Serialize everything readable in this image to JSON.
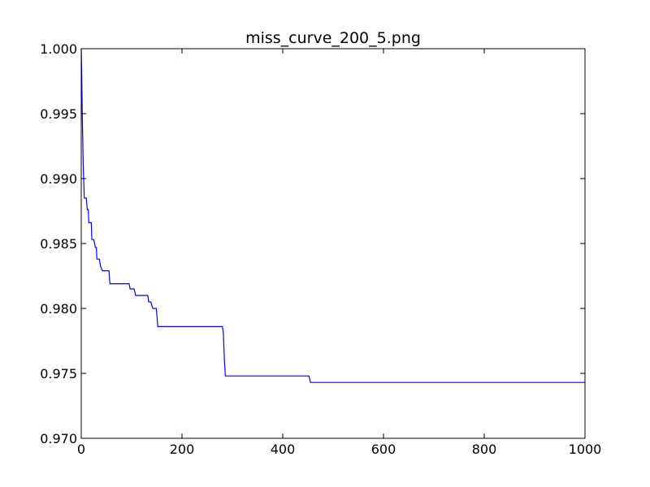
{
  "chart_data": {
    "type": "line",
    "title": "miss_curve_200_5.png",
    "xlabel": "",
    "ylabel": "",
    "xlim": [
      0,
      1000
    ],
    "ylim": [
      0.97,
      1.0
    ],
    "grid": false,
    "line_color": "#0000ff",
    "x_ticks": [
      0,
      200,
      400,
      600,
      800,
      1000
    ],
    "x_tick_labels": [
      "0",
      "200",
      "400",
      "600",
      "800",
      "1000"
    ],
    "y_ticks": [
      0.97,
      0.975,
      0.98,
      0.985,
      0.99,
      0.995,
      1.0
    ],
    "y_tick_labels": [
      "0.970",
      "0.975",
      "0.980",
      "0.985",
      "0.990",
      "0.995",
      "1.000"
    ],
    "series": [
      {
        "x": [
          0,
          1,
          2,
          4,
          6,
          8,
          10,
          12,
          13,
          14,
          15,
          16,
          18,
          20,
          21,
          22,
          24,
          25,
          28,
          30,
          31,
          34,
          36,
          38,
          42,
          44,
          48,
          55,
          57,
          60,
          95,
          97,
          105,
          108,
          132,
          134,
          138,
          142,
          147,
          149,
          152,
          155,
          280,
          282,
          284,
          286,
          288,
          452,
          455,
          1000
        ],
        "y": [
          1.0,
          0.998,
          0.995,
          0.991,
          0.9885,
          0.9885,
          0.9885,
          0.9876,
          0.9876,
          0.9876,
          0.9866,
          0.9866,
          0.9866,
          0.9866,
          0.9853,
          0.9853,
          0.9853,
          0.9853,
          0.9847,
          0.9847,
          0.9838,
          0.9838,
          0.9838,
          0.9833,
          0.9829,
          0.9829,
          0.9829,
          0.9829,
          0.9819,
          0.9819,
          0.9819,
          0.9815,
          0.9815,
          0.981,
          0.981,
          0.9805,
          0.9805,
          0.98,
          0.98,
          0.98,
          0.9786,
          0.9786,
          0.9786,
          0.9782,
          0.9762,
          0.9748,
          0.9748,
          0.9748,
          0.9743,
          0.9743
        ]
      }
    ]
  }
}
